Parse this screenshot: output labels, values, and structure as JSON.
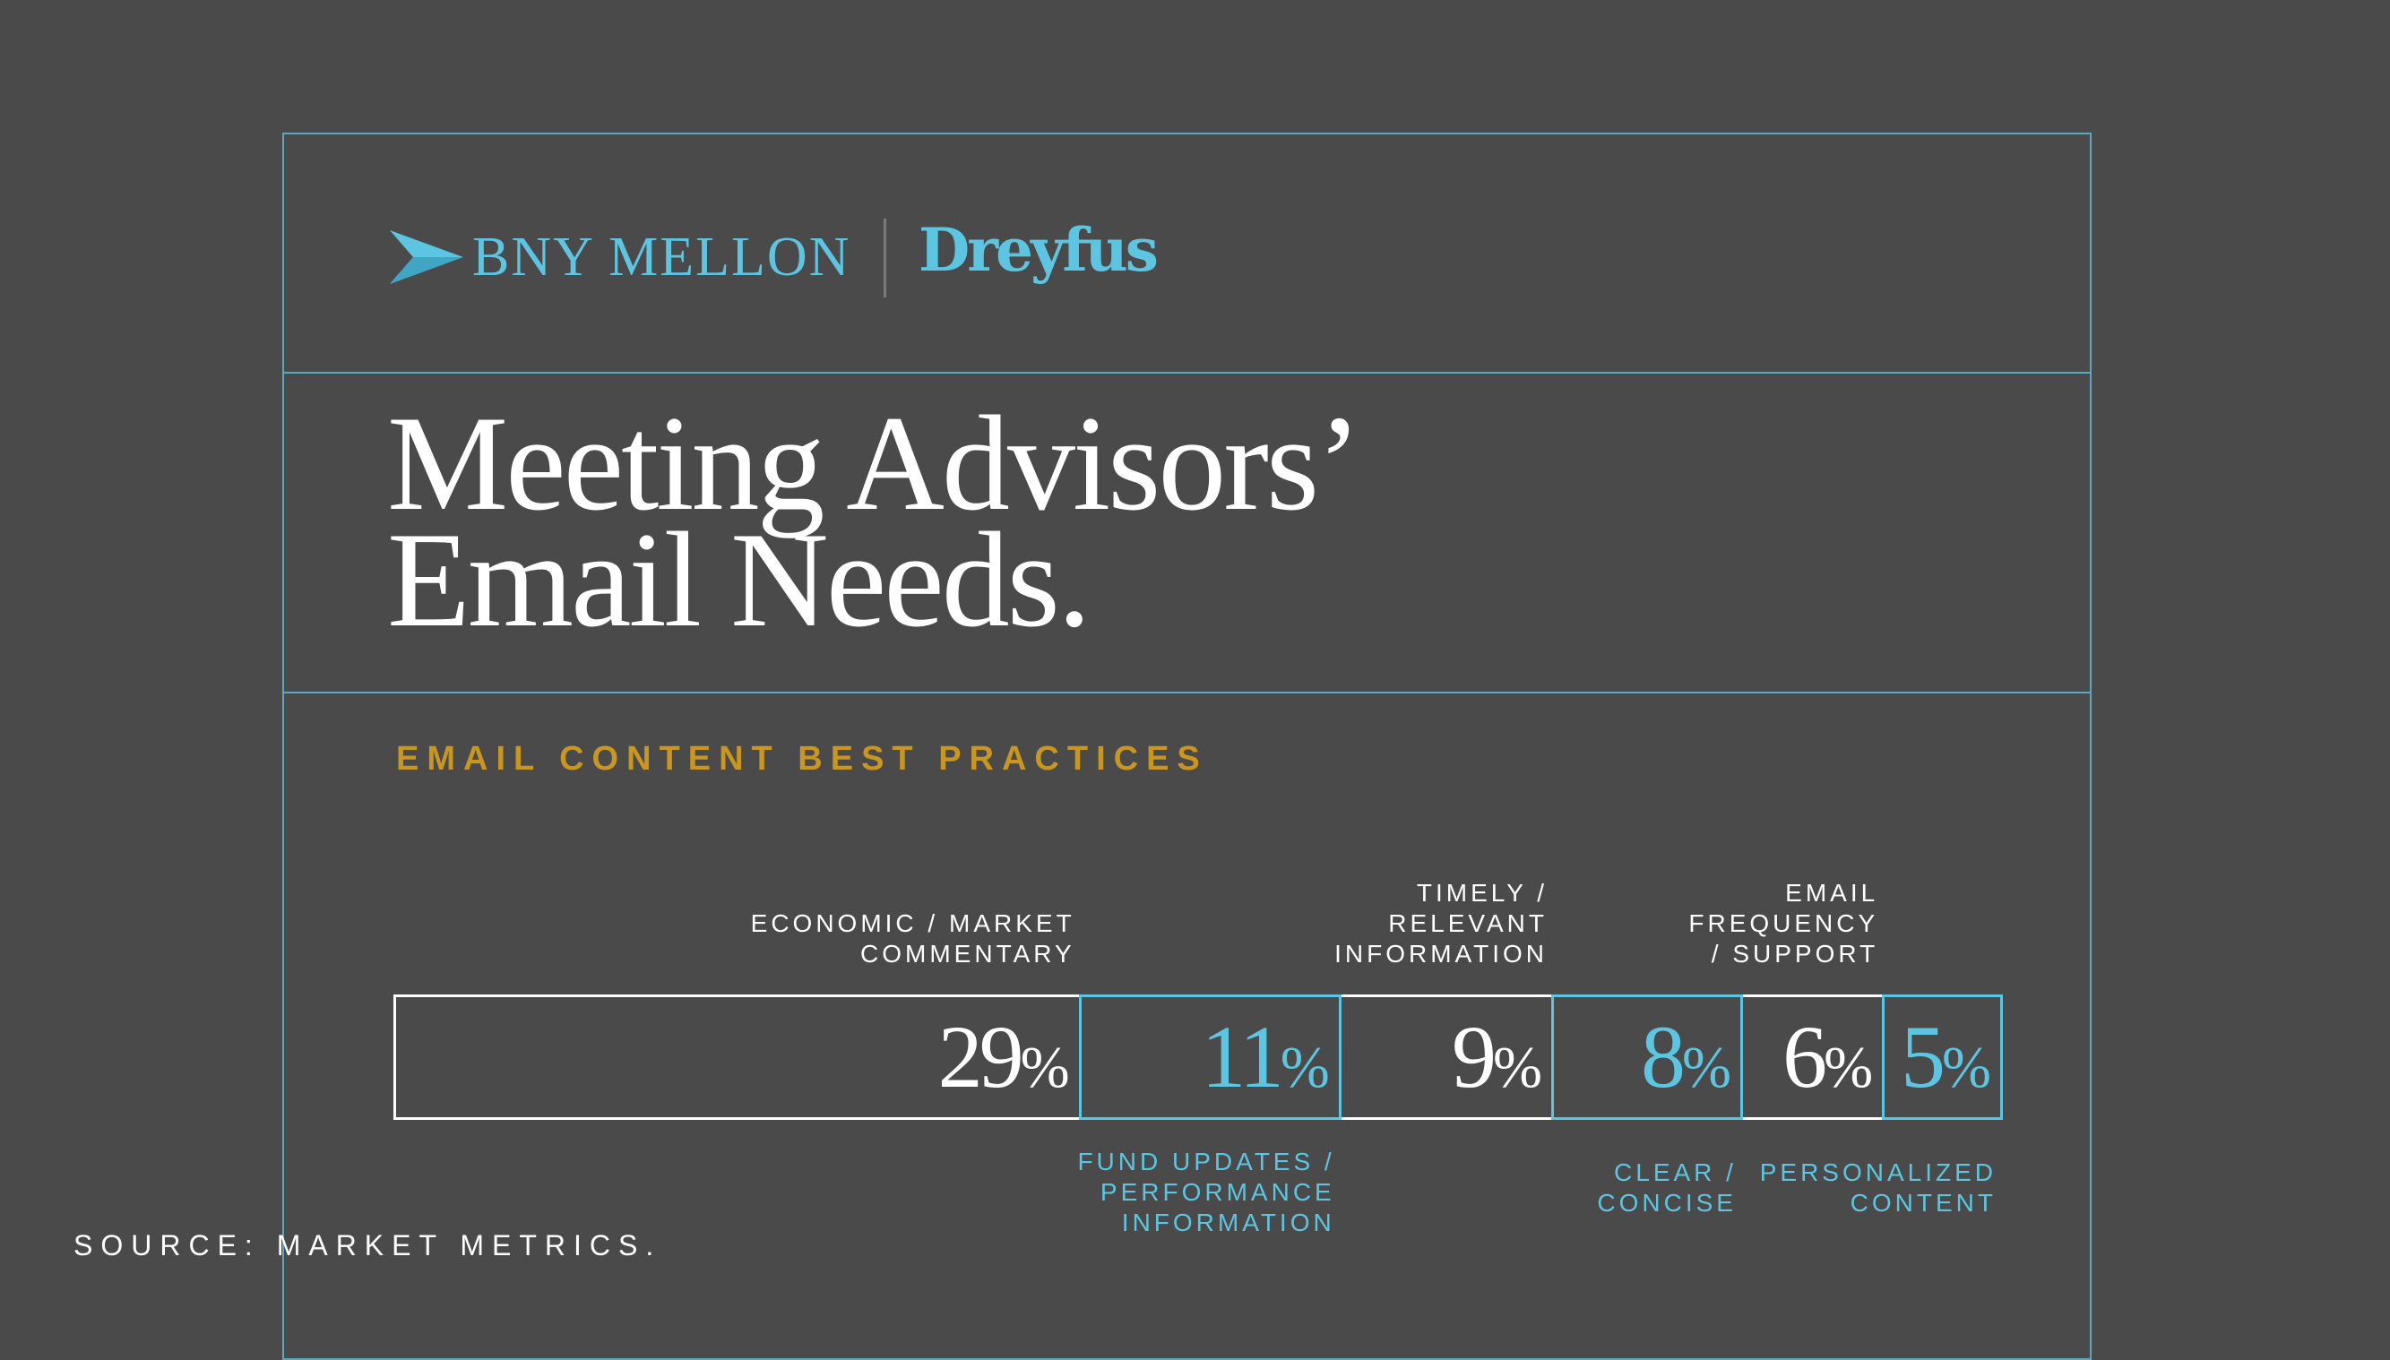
{
  "branding": {
    "bny_text": "BNY MELLON",
    "dreyfus_text": "Dreyfus",
    "brand_color": "#5cc6e2",
    "frame_color": "#5aa9bd"
  },
  "title": {
    "line1": "Meeting Advisors’",
    "line2": "Email Needs."
  },
  "subtitle": "EMAIL CONTENT BEST PRACTICES",
  "chart_data": {
    "type": "bar",
    "subtype": "stacked-horizontal",
    "categories": [
      "ECONOMIC / MARKET COMMENTARY",
      "FUND UPDATES / PERFORMANCE INFORMATION",
      "TIMELY / RELEVANT INFORMATION",
      "CLEAR / CONCISE",
      "EMAIL FREQUENCY / SUPPORT",
      "PERSONALIZED CONTENT"
    ],
    "values": [
      29,
      11,
      9,
      8,
      6,
      5
    ],
    "value_labels": [
      "29",
      "11",
      "9",
      "8",
      "6",
      "5"
    ],
    "unit": "%",
    "segment_colors": [
      "#ffffff",
      "#5cc6e2",
      "#ffffff",
      "#5cc6e2",
      "#ffffff",
      "#5cc6e2"
    ],
    "label_positions": [
      "top",
      "bottom",
      "top",
      "bottom",
      "top",
      "bottom"
    ],
    "label_lines": [
      [
        "ECONOMIC / MARKET",
        "COMMENTARY"
      ],
      [
        "FUND UPDATES /",
        "PERFORMANCE",
        "INFORMATION"
      ],
      [
        "TIMELY /",
        "RELEVANT",
        "INFORMATION"
      ],
      [
        "CLEAR /",
        "CONCISE"
      ],
      [
        "EMAIL",
        "FREQUENCY",
        "/ SUPPORT"
      ],
      [
        "PERSONALIZED",
        "CONTENT"
      ]
    ],
    "title": "EMAIL CONTENT BEST PRACTICES",
    "xlabel": "",
    "ylabel": ""
  },
  "source": "SOURCE: MARKET METRICS."
}
